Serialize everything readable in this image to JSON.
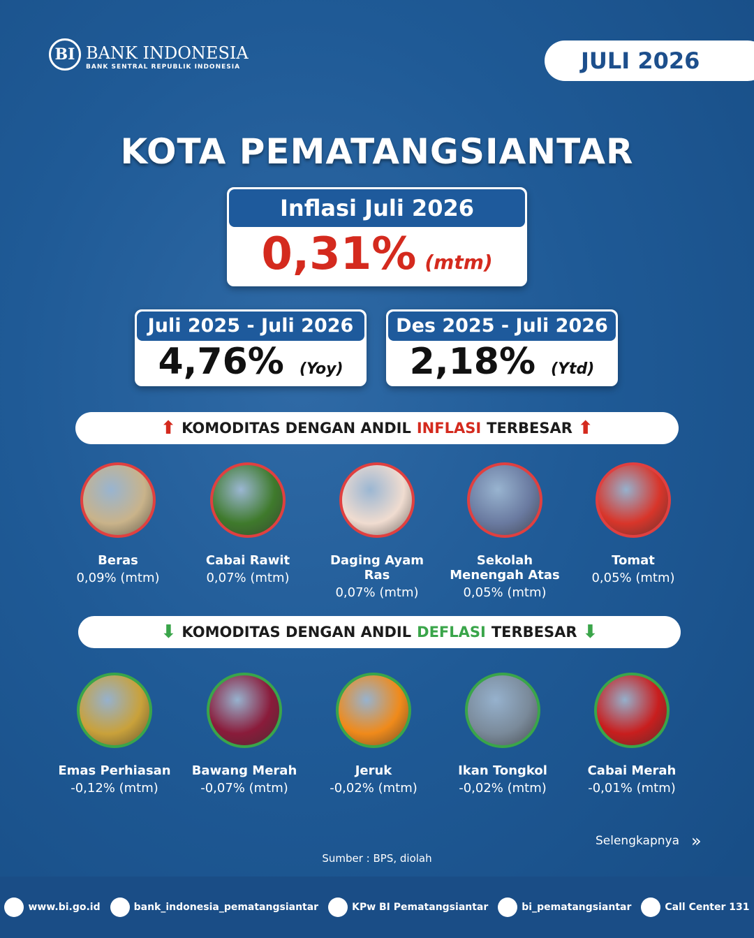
{
  "logo": {
    "name": "BANK INDONESIA",
    "tagline": "BANK SENTRAL REPUBLIK INDONESIA"
  },
  "badge": "JULI 2026",
  "title": "KOTA PEMATANGSIANTAR",
  "main": {
    "heading": "Inflasi Juli 2026",
    "value": "0,31%",
    "unit": "(mtm)"
  },
  "yoy": {
    "heading": "Juli 2025 - Juli 2026",
    "value": "4,76%",
    "unit": "(Yoy)"
  },
  "ytd": {
    "heading": "Des 2025 - Juli 2026",
    "value": "2,18%",
    "unit": "(Ytd)"
  },
  "inflation": {
    "banner": {
      "prefix": "KOMODITAS DENGAN ANDIL",
      "highlight": "INFLASI",
      "suffix": "TERBESAR"
    },
    "items": [
      {
        "name": "Beras",
        "value": "0,09% (mtm)"
      },
      {
        "name": "Cabai Rawit",
        "value": "0,07% (mtm)"
      },
      {
        "name": "Daging Ayam Ras",
        "value": "0,07% (mtm)"
      },
      {
        "name": "Sekolah Menengah Atas",
        "value": "0,05% (mtm)"
      },
      {
        "name": "Tomat",
        "value": "0,05% (mtm)"
      }
    ]
  },
  "deflation": {
    "banner": {
      "prefix": "KOMODITAS DENGAN ANDIL",
      "highlight": "DEFLASI",
      "suffix": "TERBESAR"
    },
    "items": [
      {
        "name": "Emas Perhiasan",
        "value": "-0,12% (mtm)"
      },
      {
        "name": "Bawang Merah",
        "value": "-0,07% (mtm)"
      },
      {
        "name": "Jeruk",
        "value": "-0,02% (mtm)"
      },
      {
        "name": "Ikan Tongkol",
        "value": "-0,02% (mtm)"
      },
      {
        "name": "Cabai Merah",
        "value": "-0,01% (mtm)"
      }
    ]
  },
  "source": "Sumber : BPS, diolah",
  "more": "Selengkapnya",
  "footer": [
    "www.bi.go.id",
    "bank_indonesia_pematangsiantar",
    "KPw BI Pematangsiantar",
    "bi_pematangsiantar",
    "Call Center 131"
  ]
}
